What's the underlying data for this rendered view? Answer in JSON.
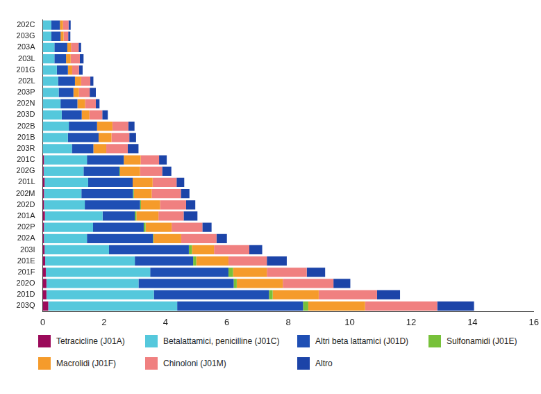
{
  "chart_data": {
    "type": "bar",
    "orientation": "horizontal",
    "stacked": true,
    "grid": false,
    "legend": "bottom",
    "categories": [
      "202C",
      "203G",
      "203A",
      "203L",
      "201G",
      "202L",
      "203P",
      "202N",
      "203D",
      "202B",
      "201B",
      "203R",
      "201C",
      "202G",
      "201L",
      "202M",
      "202D",
      "201A",
      "202P",
      "202A",
      "203I",
      "201E",
      "201F",
      "202O",
      "201D",
      "203Q"
    ],
    "xlim": [
      0,
      16
    ],
    "xticks": [
      0,
      2,
      4,
      6,
      8,
      10,
      12,
      14,
      16
    ],
    "series": [
      {
        "name": "Tetracicline (J01A)",
        "color": "#9b0a5a",
        "values": [
          0,
          0,
          0,
          0,
          0,
          0,
          0,
          0,
          0,
          0,
          0,
          0,
          0.04,
          0.03,
          0.06,
          0.04,
          0.04,
          0.07,
          0.04,
          0.04,
          0.06,
          0.08,
          0.1,
          0.12,
          0.12,
          0.18
        ]
      },
      {
        "name": "Betalattamici, penicilline (J01C)",
        "color": "#55c8dc",
        "values": [
          0.28,
          0.28,
          0.38,
          0.38,
          0.46,
          0.5,
          0.52,
          0.58,
          0.62,
          0.85,
          0.82,
          0.95,
          1.4,
          1.3,
          1.42,
          1.22,
          1.33,
          1.88,
          1.6,
          1.4,
          2.1,
          2.92,
          3.4,
          3.0,
          3.5,
          4.2
        ]
      },
      {
        "name": "Altri beta lattamici (J01D)",
        "color": "#1f4fb4",
        "values": [
          0.28,
          0.3,
          0.42,
          0.38,
          0.36,
          0.55,
          0.48,
          0.55,
          0.65,
          0.92,
          1.0,
          0.7,
          1.2,
          1.17,
          1.45,
          1.68,
          1.8,
          1.05,
          1.65,
          2.15,
          2.6,
          1.9,
          2.55,
          3.1,
          3.75,
          4.1
        ]
      },
      {
        "name": "Sulfonamidi (J01E)",
        "color": "#77c13a",
        "values": [
          0,
          0,
          0,
          0,
          0,
          0,
          0,
          0,
          0,
          0,
          0,
          0,
          0,
          0.02,
          0,
          0.03,
          0.03,
          0.05,
          0.06,
          0.02,
          0.1,
          0.1,
          0.15,
          0.1,
          0.12,
          0.17
        ]
      },
      {
        "name": "Macrolidi (J01F)",
        "color": "#f59b2b",
        "values": [
          0.1,
          0.1,
          0.12,
          0.15,
          0.14,
          0.2,
          0.18,
          0.25,
          0.25,
          0.5,
          0.42,
          0.42,
          0.55,
          0.65,
          0.65,
          0.58,
          0.62,
          0.72,
          0.85,
          0.9,
          0.72,
          1.05,
          1.1,
          1.5,
          1.5,
          1.85
        ]
      },
      {
        "name": "Chinoloni (J01M)",
        "color": "#f08080",
        "values": [
          0.18,
          0.15,
          0.25,
          0.3,
          0.22,
          0.3,
          0.35,
          0.35,
          0.42,
          0.52,
          0.58,
          0.7,
          0.6,
          0.72,
          0.78,
          0.95,
          0.85,
          0.82,
          1.0,
          1.15,
          1.15,
          1.25,
          1.3,
          1.65,
          1.9,
          2.35
        ]
      },
      {
        "name": "Altro",
        "color": "#1c44a8",
        "values": [
          0.07,
          0.07,
          0.08,
          0.12,
          0.12,
          0.1,
          0.2,
          0.12,
          0.18,
          0.2,
          0.22,
          0.35,
          0.25,
          0.3,
          0.25,
          0.28,
          0.3,
          0.45,
          0.3,
          0.34,
          0.42,
          0.65,
          0.6,
          0.55,
          0.75,
          1.2
        ]
      }
    ]
  }
}
